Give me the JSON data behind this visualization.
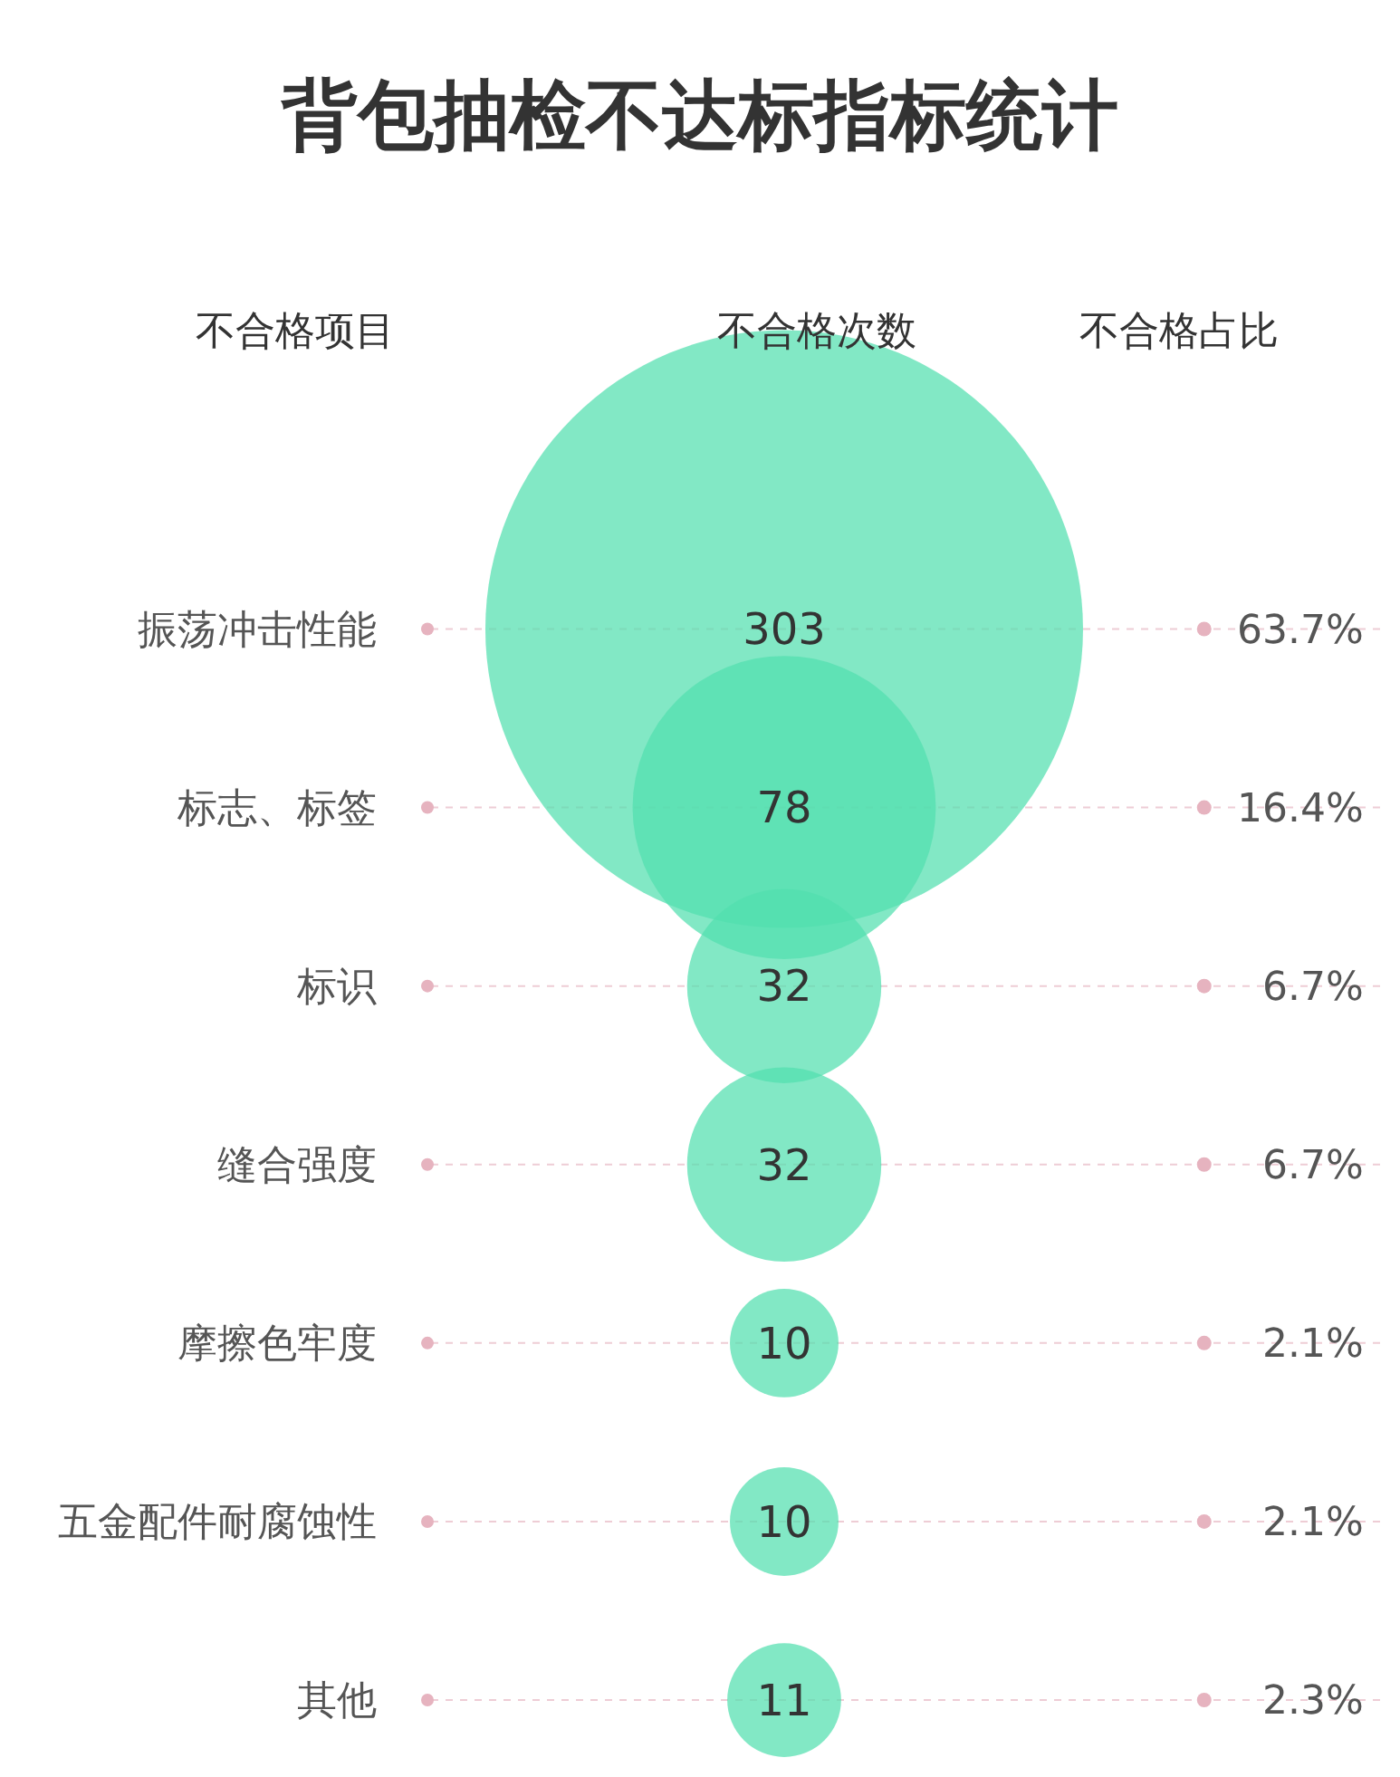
{
  "chart_data": {
    "type": "other",
    "title": "背包抽检不达标指标统计",
    "annotations": [
      "不合格项目",
      "不合格次数",
      "不合格占比"
    ],
    "categories": [
      "振荡冲击性能",
      "标志、标签",
      "标识",
      "缝合强度",
      "摩擦色牢度",
      "五金配件耐腐蚀性",
      "其他"
    ],
    "series": [
      {
        "color": "#52dfae",
        "values": [
          303,
          78,
          32,
          32,
          10,
          10,
          11
        ]
      },
      {
        "color": "#e6b3bf",
        "values": [
          63.7,
          16.4,
          6.7,
          6.7,
          2.1,
          2.1,
          2.3
        ],
        "value_labels": [
          "63.7%",
          "16.4%",
          "6.7%",
          "6.7%",
          "2.1%",
          "2.1%",
          "2.3%"
        ]
      }
    ],
    "data_labels": true,
    "legend": false
  }
}
